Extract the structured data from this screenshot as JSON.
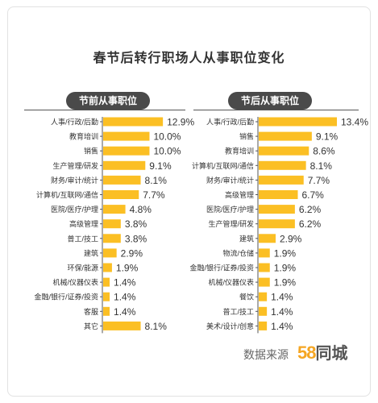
{
  "title": "春节后转行职场人从事职位变化",
  "source_label": "数据来源",
  "logo": {
    "number": "58",
    "text": "同城"
  },
  "colors": {
    "bar": "#fbbf24",
    "badge": "#4a4a4a",
    "axis": "#555555",
    "text": "#333333"
  },
  "chart_data": [
    {
      "type": "bar",
      "orientation": "horizontal",
      "title": "节前从事职位",
      "xlim": [
        0,
        13.4
      ],
      "value_suffix": "%",
      "categories": [
        "人事/行政/后勤",
        "教育培训",
        "销售",
        "生产管理/研发",
        "财务/审计/统计",
        "计算机/互联网/通信",
        "医院/医疗/护理",
        "高级管理",
        "普工/技工",
        "建筑",
        "环保/能源",
        "机械/仪器仪表",
        "金融/银行/证券/投资",
        "客服",
        "其它"
      ],
      "values": [
        12.9,
        10.0,
        10.0,
        9.1,
        8.1,
        7.7,
        4.8,
        3.8,
        3.8,
        2.9,
        1.9,
        1.4,
        1.4,
        1.4,
        8.1
      ]
    },
    {
      "type": "bar",
      "orientation": "horizontal",
      "title": "节后从事职位",
      "xlim": [
        0,
        13.4
      ],
      "value_suffix": "%",
      "categories": [
        "人事/行政/后勤",
        "销售",
        "教育培训",
        "计算机/互联网/通信",
        "财务/审计/统计",
        "高级管理",
        "医院/医疗/护理",
        "生产管理/研发",
        "建筑",
        "物流/仓储",
        "金融/银行/证券/投资",
        "机械/仪器仪表",
        "餐饮",
        "普工/技工",
        "美术/设计/创意"
      ],
      "values": [
        13.4,
        9.1,
        8.6,
        8.1,
        7.7,
        6.7,
        6.2,
        6.2,
        2.9,
        1.9,
        1.9,
        1.9,
        1.4,
        1.4,
        1.4
      ]
    }
  ]
}
